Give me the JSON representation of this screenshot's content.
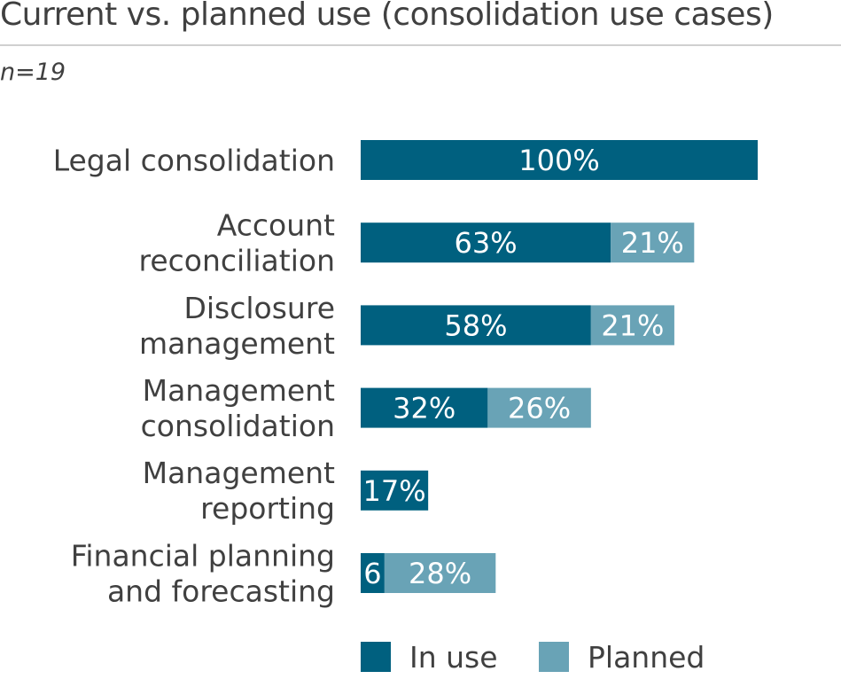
{
  "header": {
    "title": "Current vs. planned use (consolidation use cases)",
    "subtitle": "n=19"
  },
  "colors": {
    "in_use": "#00607f",
    "planned": "#69a3b6",
    "label_text": "#404040",
    "bar_text": "#ffffff"
  },
  "chart_data": {
    "type": "bar",
    "orientation": "horizontal",
    "stacked": true,
    "categories": [
      "Legal consolidation",
      "Account reconciliation",
      "Disclosure management",
      "Management consolidation",
      "Management reporting",
      "Financial planning and forecasting"
    ],
    "category_lines": [
      [
        "Legal consolidation"
      ],
      [
        "Account",
        "reconciliation"
      ],
      [
        "Disclosure",
        "management"
      ],
      [
        "Management",
        "consolidation"
      ],
      [
        "Management",
        "reporting"
      ],
      [
        "Financial planning",
        "and forecasting"
      ]
    ],
    "series": [
      {
        "name": "In use",
        "values": [
          100,
          63,
          58,
          32,
          17,
          6
        ],
        "labels": [
          "100%",
          "63%",
          "58%",
          "32%",
          "17%",
          "6"
        ]
      },
      {
        "name": "Planned",
        "values": [
          0,
          21,
          21,
          26,
          0,
          28
        ],
        "labels": [
          "",
          "21%",
          "21%",
          "26%",
          "",
          "28%"
        ]
      }
    ],
    "xlim": [
      0,
      100
    ],
    "grid": false,
    "legend": "bottom"
  }
}
